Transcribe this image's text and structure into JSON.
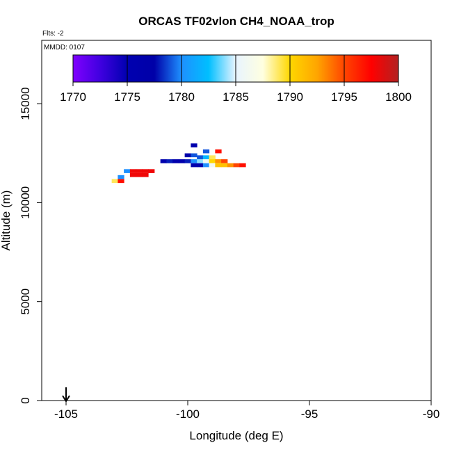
{
  "chart_data": {
    "type": "heatmap",
    "title": "ORCAS TF02vlon CH4_NOAA_trop",
    "subtitle": "Flts: -2",
    "annotation": "MMDD: 0107",
    "xlabel": "Longitude (deg E)",
    "ylabel": "Altitude (m)",
    "xlim": [
      -106,
      -90
    ],
    "ylim": [
      0,
      18200
    ],
    "x_ticks": [
      -105,
      -100,
      -95,
      -90
    ],
    "y_ticks": [
      0,
      5000,
      10000,
      15000
    ],
    "arrow_marker": {
      "x": -105,
      "direction": "down"
    },
    "colorbar": {
      "range": [
        1770,
        1800
      ],
      "ticks": [
        1770,
        1775,
        1780,
        1785,
        1790,
        1795,
        1800
      ],
      "stops": [
        "#8000ff",
        "#4000e0",
        "#0000b0",
        "#0000a8",
        "#1e90ff",
        "#00bfff",
        "#e8f4ff",
        "#ffffe0",
        "#ffd700",
        "#ffa500",
        "#ff4500",
        "#ff0000",
        "#b22222"
      ]
    },
    "cell_width_deg": 0.25,
    "cell_height_m": 180,
    "points": [
      {
        "lon": -103.0,
        "alt": 11100,
        "value": 1789
      },
      {
        "lon": -102.75,
        "alt": 11100,
        "value": 1797
      },
      {
        "lon": -102.75,
        "alt": 11300,
        "value": 1780
      },
      {
        "lon": -102.5,
        "alt": 11600,
        "value": 1780
      },
      {
        "lon": -102.25,
        "alt": 11400,
        "value": 1798
      },
      {
        "lon": -102.0,
        "alt": 11400,
        "value": 1798
      },
      {
        "lon": -101.75,
        "alt": 11400,
        "value": 1798
      },
      {
        "lon": -102.25,
        "alt": 11600,
        "value": 1798
      },
      {
        "lon": -102.0,
        "alt": 11600,
        "value": 1798
      },
      {
        "lon": -101.75,
        "alt": 11600,
        "value": 1798
      },
      {
        "lon": -101.5,
        "alt": 11600,
        "value": 1798
      },
      {
        "lon": -101.0,
        "alt": 12100,
        "value": 1776
      },
      {
        "lon": -100.75,
        "alt": 12100,
        "value": 1778
      },
      {
        "lon": -100.5,
        "alt": 12100,
        "value": 1776
      },
      {
        "lon": -100.25,
        "alt": 12100,
        "value": 1776
      },
      {
        "lon": -100.0,
        "alt": 12100,
        "value": 1778
      },
      {
        "lon": -99.75,
        "alt": 12100,
        "value": 1780
      },
      {
        "lon": -99.5,
        "alt": 12100,
        "value": 1784
      },
      {
        "lon": -99.25,
        "alt": 12100,
        "value": 1786
      },
      {
        "lon": -99.0,
        "alt": 12100,
        "value": 1790
      },
      {
        "lon": -98.75,
        "alt": 12100,
        "value": 1793
      },
      {
        "lon": -98.5,
        "alt": 12100,
        "value": 1795
      },
      {
        "lon": -99.5,
        "alt": 12300,
        "value": 1779
      },
      {
        "lon": -99.25,
        "alt": 12300,
        "value": 1782
      },
      {
        "lon": -99.0,
        "alt": 12300,
        "value": 1789
      },
      {
        "lon": -100.0,
        "alt": 12400,
        "value": 1777
      },
      {
        "lon": -99.75,
        "alt": 12400,
        "value": 1779
      },
      {
        "lon": -99.25,
        "alt": 12600,
        "value": 1779
      },
      {
        "lon": -98.75,
        "alt": 12600,
        "value": 1797
      },
      {
        "lon": -99.75,
        "alt": 12900,
        "value": 1776
      },
      {
        "lon": -99.75,
        "alt": 11900,
        "value": 1776
      },
      {
        "lon": -99.5,
        "alt": 11900,
        "value": 1776
      },
      {
        "lon": -99.25,
        "alt": 11900,
        "value": 1780
      },
      {
        "lon": -99.0,
        "alt": 11900,
        "value": 1786
      },
      {
        "lon": -98.75,
        "alt": 11900,
        "value": 1791
      },
      {
        "lon": -98.5,
        "alt": 11900,
        "value": 1791
      },
      {
        "lon": -98.25,
        "alt": 11900,
        "value": 1793
      },
      {
        "lon": -98.0,
        "alt": 11900,
        "value": 1795
      },
      {
        "lon": -97.75,
        "alt": 11900,
        "value": 1797
      }
    ]
  }
}
